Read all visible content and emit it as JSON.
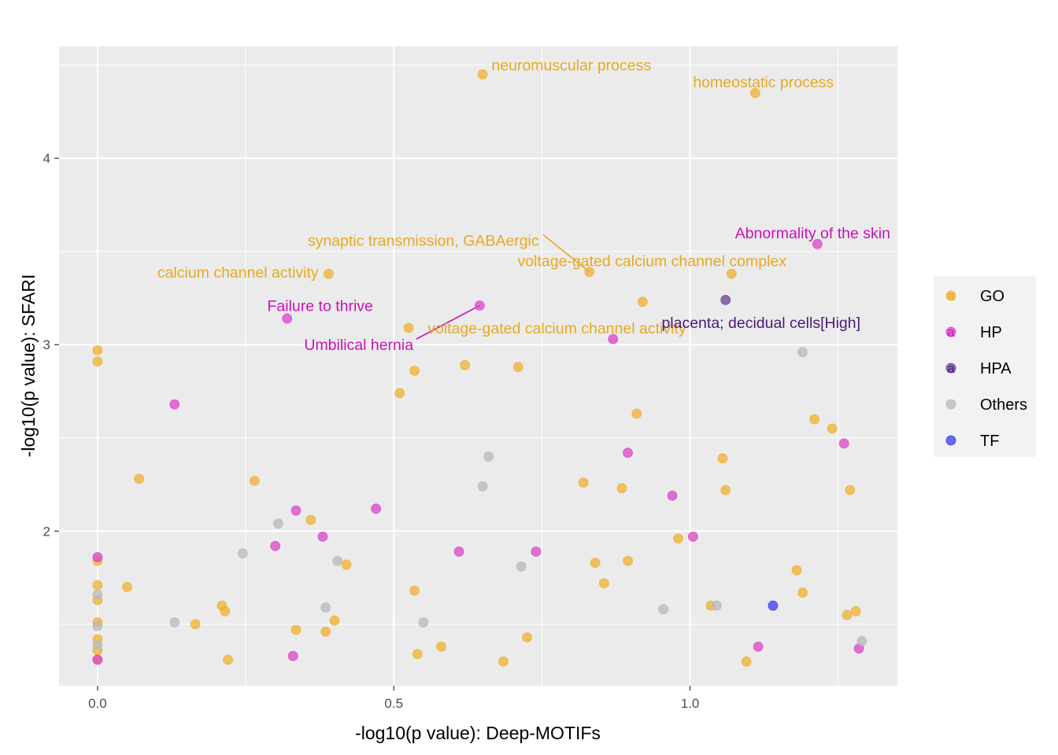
{
  "chart_data": {
    "type": "scatter",
    "xlabel": "-log10(p value): Deep-MOTIFs",
    "ylabel": "-log10(p value): SFARI",
    "xlim": [
      -0.065,
      1.35
    ],
    "ylim": [
      1.17,
      4.6
    ],
    "x_ticks": [
      0.0,
      0.5,
      1.0
    ],
    "x_tick_labels": [
      "0.0",
      "0.5",
      "1.0"
    ],
    "y_ticks": [
      2,
      3,
      4
    ],
    "y_tick_labels": [
      "2",
      "3",
      "4"
    ],
    "grid": true,
    "legend_position": "right",
    "categories": [
      "GO",
      "HP",
      "HPA",
      "Others",
      "TF"
    ],
    "colors": {
      "GO": "#F0B030",
      "HP": "#D845C8",
      "HPA": "#6A3D9A",
      "Others": "#B8B8B8",
      "TF": "#3A3AF0"
    },
    "label_colors": {
      "GO": "#E8A820",
      "HP": "#CC10B8",
      "HPA": "#4A1A7A"
    },
    "legend_glyph": "a",
    "series": [
      {
        "name": "GO",
        "points": [
          [
            0.65,
            4.45
          ],
          [
            1.11,
            4.35
          ],
          [
            0.39,
            3.38
          ],
          [
            0.83,
            3.39
          ],
          [
            1.07,
            3.38
          ],
          [
            0.92,
            3.23
          ],
          [
            0.525,
            3.09
          ],
          [
            0.0,
            2.97
          ],
          [
            0.0,
            2.91
          ],
          [
            0.535,
            2.86
          ],
          [
            0.62,
            2.89
          ],
          [
            0.71,
            2.88
          ],
          [
            0.51,
            2.74
          ],
          [
            0.91,
            2.63
          ],
          [
            1.21,
            2.6
          ],
          [
            1.24,
            2.55
          ],
          [
            0.07,
            2.28
          ],
          [
            0.265,
            2.27
          ],
          [
            0.82,
            2.26
          ],
          [
            1.055,
            2.39
          ],
          [
            1.06,
            2.22
          ],
          [
            0.885,
            2.23
          ],
          [
            1.27,
            2.22
          ],
          [
            0.36,
            2.06
          ],
          [
            0.98,
            1.96
          ],
          [
            0.0,
            1.84
          ],
          [
            0.42,
            1.82
          ],
          [
            0.84,
            1.83
          ],
          [
            0.895,
            1.84
          ],
          [
            1.18,
            1.79
          ],
          [
            0.05,
            1.7
          ],
          [
            0.0,
            1.71
          ],
          [
            0.855,
            1.72
          ],
          [
            0.535,
            1.68
          ],
          [
            1.19,
            1.67
          ],
          [
            0.0,
            1.63
          ],
          [
            0.21,
            1.6
          ],
          [
            0.215,
            1.57
          ],
          [
            1.035,
            1.6
          ],
          [
            1.265,
            1.55
          ],
          [
            1.28,
            1.57
          ],
          [
            0.165,
            1.5
          ],
          [
            0.0,
            1.51
          ],
          [
            0.4,
            1.52
          ],
          [
            0.335,
            1.47
          ],
          [
            0.385,
            1.46
          ],
          [
            0.0,
            1.42
          ],
          [
            0.725,
            1.43
          ],
          [
            0.58,
            1.38
          ],
          [
            0.54,
            1.34
          ],
          [
            0.0,
            1.36
          ],
          [
            0.22,
            1.31
          ],
          [
            0.685,
            1.3
          ],
          [
            1.095,
            1.3
          ],
          [
            0.0,
            1.31
          ]
        ]
      },
      {
        "name": "HP",
        "points": [
          [
            1.215,
            3.54
          ],
          [
            0.645,
            3.21
          ],
          [
            0.32,
            3.14
          ],
          [
            0.87,
            3.03
          ],
          [
            0.13,
            2.68
          ],
          [
            1.26,
            2.47
          ],
          [
            0.895,
            2.42
          ],
          [
            0.97,
            2.19
          ],
          [
            0.47,
            2.12
          ],
          [
            0.335,
            2.11
          ],
          [
            0.38,
            1.97
          ],
          [
            1.005,
            1.97
          ],
          [
            0.3,
            1.92
          ],
          [
            0.61,
            1.89
          ],
          [
            0.74,
            1.89
          ],
          [
            0.0,
            1.86
          ],
          [
            1.115,
            1.38
          ],
          [
            1.285,
            1.37
          ],
          [
            0.33,
            1.33
          ],
          [
            0.0,
            1.31
          ]
        ]
      },
      {
        "name": "HPA",
        "points": [
          [
            1.06,
            3.24
          ]
        ]
      },
      {
        "name": "Others",
        "points": [
          [
            1.19,
            2.96
          ],
          [
            0.66,
            2.4
          ],
          [
            0.65,
            2.24
          ],
          [
            0.305,
            2.04
          ],
          [
            0.245,
            1.88
          ],
          [
            0.405,
            1.84
          ],
          [
            0.715,
            1.81
          ],
          [
            0.0,
            1.66
          ],
          [
            0.385,
            1.59
          ],
          [
            0.955,
            1.58
          ],
          [
            1.045,
            1.6
          ],
          [
            0.13,
            1.51
          ],
          [
            0.55,
            1.51
          ],
          [
            0.0,
            1.49
          ],
          [
            1.29,
            1.41
          ],
          [
            0.0,
            1.39
          ]
        ]
      },
      {
        "name": "TF",
        "points": [
          [
            1.14,
            1.6
          ]
        ]
      }
    ],
    "annotations": [
      {
        "text": "neuromuscular process",
        "group": "GO",
        "x": 0.665,
        "y": 4.5,
        "anchor": "start"
      },
      {
        "text": "homeostatic process",
        "group": "GO",
        "x": 1.005,
        "y": 4.41,
        "anchor": "start"
      },
      {
        "text": "synaptic transmission, GABAergic",
        "group": "GO",
        "x": 0.745,
        "y": 3.56,
        "anchor": "end"
      },
      {
        "text": "voltage-gated calcium channel complex",
        "group": "GO",
        "x": 0.709,
        "y": 3.45,
        "anchor": "start"
      },
      {
        "text": "calcium channel activity",
        "group": "GO",
        "x": 0.373,
        "y": 3.39,
        "anchor": "end"
      },
      {
        "text": "Abnormality of the skin",
        "group": "HP",
        "x": 1.338,
        "y": 3.6,
        "anchor": "end"
      },
      {
        "text": "Failure to thrive",
        "group": "HP",
        "x": 0.465,
        "y": 3.21,
        "anchor": "end"
      },
      {
        "text": "Umbilical hernia",
        "group": "HP",
        "x": 0.533,
        "y": 3.0,
        "anchor": "end"
      },
      {
        "text": "voltage-gated calcium channel activity",
        "group": "GO",
        "x": 0.557,
        "y": 3.09,
        "anchor": "start"
      },
      {
        "text": "placenta; decidual cells[High]",
        "group": "HPA",
        "x": 0.952,
        "y": 3.12,
        "anchor": "start"
      }
    ],
    "annotation_segments": [
      {
        "group": "GO",
        "from": [
          0.752,
          3.59
        ],
        "to": [
          0.83,
          3.39
        ]
      },
      {
        "group": "HP",
        "from": [
          0.538,
          3.03
        ],
        "to": [
          0.645,
          3.21
        ]
      }
    ]
  }
}
